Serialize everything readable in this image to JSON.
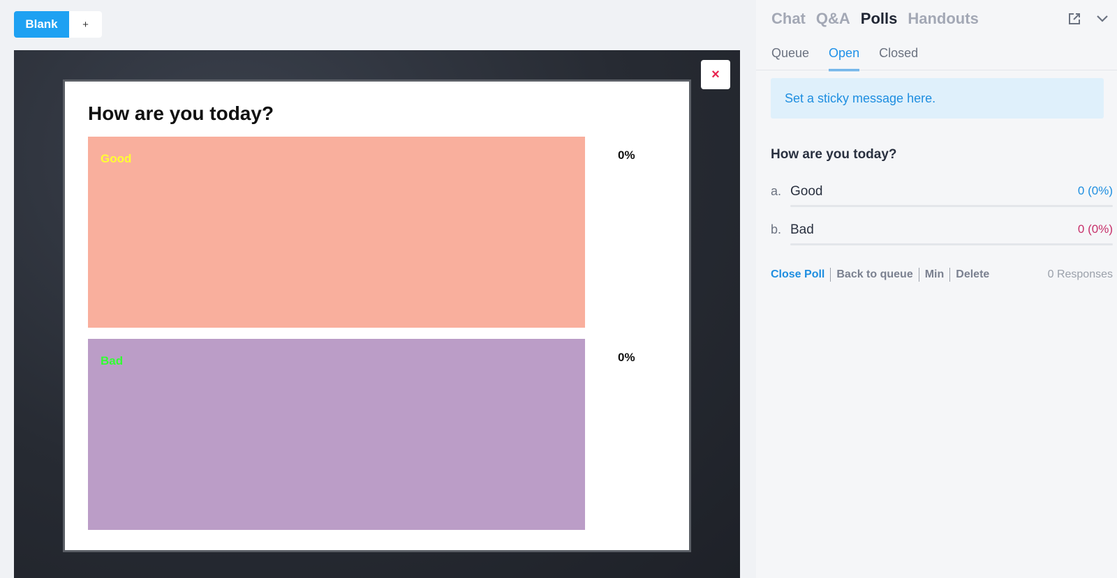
{
  "stage_tabs": {
    "blank_label": "Blank",
    "add_label": "+"
  },
  "stage": {
    "close_label": "×",
    "poll": {
      "title": "How are you today?",
      "bars": [
        {
          "label": "Good",
          "percent_label": "0%",
          "color": "#f9af9d",
          "label_color": "#ffff33"
        },
        {
          "label": "Bad",
          "percent_label": "0%",
          "color": "#bb9dc7",
          "label_color": "#33ff33"
        }
      ]
    }
  },
  "panel": {
    "tabs": [
      "Chat",
      "Q&A",
      "Polls",
      "Handouts"
    ],
    "active_tab": "Polls",
    "icons": [
      "external-link-icon",
      "chevron-down-icon"
    ],
    "sub_tabs": [
      "Queue",
      "Open",
      "Closed"
    ],
    "active_sub_tab": "Open",
    "sticky_message": "Set a sticky message here.",
    "poll": {
      "question": "How are you today?",
      "options": [
        {
          "letter": "a.",
          "label": "Good",
          "count": "0 (0%)",
          "color": "#1e8ee0"
        },
        {
          "letter": "b.",
          "label": "Bad",
          "count": "0 (0%)",
          "color": "#c7306a"
        }
      ],
      "actions": [
        "Close Poll",
        "Back to queue",
        "Min",
        "Delete"
      ],
      "responses": "0 Responses"
    }
  }
}
